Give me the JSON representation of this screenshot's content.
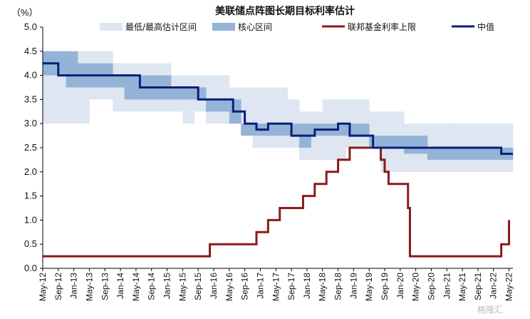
{
  "chart_data": {
    "type": "area",
    "title": "美联储点阵图长期目标利率估计",
    "unit_label": "（%）",
    "ylim": [
      0,
      5
    ],
    "yticks": [
      "0.0",
      "0.5",
      "1.0",
      "1.5",
      "2.0",
      "2.5",
      "3.0",
      "3.5",
      "4.0",
      "4.5",
      "5.0"
    ],
    "xlim": [
      "2012-05",
      "2022-06"
    ],
    "xticks": [
      {
        "date": "2012-05",
        "label": "May-12"
      },
      {
        "date": "2012-09",
        "label": "Sep-12"
      },
      {
        "date": "2013-01",
        "label": "Jan-13"
      },
      {
        "date": "2013-05",
        "label": "May-13"
      },
      {
        "date": "2013-09",
        "label": "Sep-13"
      },
      {
        "date": "2014-01",
        "label": "Jan-14"
      },
      {
        "date": "2014-05",
        "label": "May-14"
      },
      {
        "date": "2014-09",
        "label": "Sep-14"
      },
      {
        "date": "2015-01",
        "label": "Jan-15"
      },
      {
        "date": "2015-05",
        "label": "May-15"
      },
      {
        "date": "2015-09",
        "label": "Sep-15"
      },
      {
        "date": "2016-01",
        "label": "Jan-16"
      },
      {
        "date": "2016-05",
        "label": "May-16"
      },
      {
        "date": "2016-09",
        "label": "Sep-16"
      },
      {
        "date": "2017-01",
        "label": "Jan-17"
      },
      {
        "date": "2017-05",
        "label": "May-17"
      },
      {
        "date": "2017-09",
        "label": "Sep-17"
      },
      {
        "date": "2018-01",
        "label": "Jan-18"
      },
      {
        "date": "2018-05",
        "label": "May-18"
      },
      {
        "date": "2018-09",
        "label": "Sep-18"
      },
      {
        "date": "2019-01",
        "label": "Jan-19"
      },
      {
        "date": "2019-05",
        "label": "May-19"
      },
      {
        "date": "2019-09",
        "label": "Sep-19"
      },
      {
        "date": "2020-01",
        "label": "Jan-20"
      },
      {
        "date": "2020-05",
        "label": "May-20"
      },
      {
        "date": "2020-09",
        "label": "Sep-20"
      },
      {
        "date": "2021-01",
        "label": "Jan-21"
      },
      {
        "date": "2021-05",
        "label": "May-21"
      },
      {
        "date": "2021-09",
        "label": "Sep-21"
      },
      {
        "date": "2022-01",
        "label": "Jan-22"
      },
      {
        "date": "2022-05",
        "label": "May-22"
      }
    ],
    "series": [
      {
        "name": "最低/最高估计区间",
        "kind": "band",
        "color": "#dde6f1",
        "data": [
          {
            "x": "2012-05",
            "low": 3.0,
            "high": 4.5
          },
          {
            "x": "2012-08",
            "low": 3.0,
            "high": 4.5
          },
          {
            "x": "2012-11",
            "low": 3.0,
            "high": 4.5
          },
          {
            "x": "2013-02",
            "low": 3.0,
            "high": 4.5
          },
          {
            "x": "2013-05",
            "low": 3.5,
            "high": 4.5
          },
          {
            "x": "2013-08",
            "low": 3.5,
            "high": 4.5
          },
          {
            "x": "2013-11",
            "low": 3.25,
            "high": 4.25
          },
          {
            "x": "2014-02",
            "low": 3.25,
            "high": 4.25
          },
          {
            "x": "2014-05",
            "low": 3.25,
            "high": 4.25
          },
          {
            "x": "2014-08",
            "low": 3.25,
            "high": 4.25
          },
          {
            "x": "2014-11",
            "low": 3.25,
            "high": 4.25
          },
          {
            "x": "2015-02",
            "low": 3.25,
            "high": 4.0
          },
          {
            "x": "2015-05",
            "low": 3.0,
            "high": 4.0
          },
          {
            "x": "2015-08",
            "low": 3.25,
            "high": 4.0
          },
          {
            "x": "2015-11",
            "low": 3.0,
            "high": 4.0
          },
          {
            "x": "2016-02",
            "low": 3.0,
            "high": 4.0
          },
          {
            "x": "2016-05",
            "low": 3.0,
            "high": 3.75
          },
          {
            "x": "2016-08",
            "low": 2.75,
            "high": 3.75
          },
          {
            "x": "2016-11",
            "low": 2.5,
            "high": 3.75
          },
          {
            "x": "2017-02",
            "low": 2.5,
            "high": 3.75
          },
          {
            "x": "2017-05",
            "low": 2.5,
            "high": 3.75
          },
          {
            "x": "2017-08",
            "low": 2.5,
            "high": 3.5
          },
          {
            "x": "2017-11",
            "low": 2.25,
            "high": 3.25
          },
          {
            "x": "2018-02",
            "low": 2.25,
            "high": 3.25
          },
          {
            "x": "2018-05",
            "low": 2.25,
            "high": 3.5
          },
          {
            "x": "2018-08",
            "low": 2.25,
            "high": 3.5
          },
          {
            "x": "2018-11",
            "low": 2.5,
            "high": 3.5
          },
          {
            "x": "2019-02",
            "low": 2.5,
            "high": 3.5
          },
          {
            "x": "2019-05",
            "low": 2.5,
            "high": 3.25
          },
          {
            "x": "2019-08",
            "low": 2.0,
            "high": 3.25
          },
          {
            "x": "2019-11",
            "low": 2.0,
            "high": 3.25
          },
          {
            "x": "2020-02",
            "low": 2.0,
            "high": 3.0
          },
          {
            "x": "2020-05",
            "low": 2.0,
            "high": 3.0
          },
          {
            "x": "2020-08",
            "low": 2.0,
            "high": 3.0
          },
          {
            "x": "2020-11",
            "low": 2.0,
            "high": 3.0
          },
          {
            "x": "2021-02",
            "low": 2.0,
            "high": 3.0
          },
          {
            "x": "2021-05",
            "low": 2.0,
            "high": 3.0
          },
          {
            "x": "2021-08",
            "low": 2.0,
            "high": 3.0
          },
          {
            "x": "2021-11",
            "low": 2.0,
            "high": 3.0
          },
          {
            "x": "2022-02",
            "low": 2.0,
            "high": 3.0
          },
          {
            "x": "2022-06",
            "low": 2.0,
            "high": 3.0
          }
        ]
      },
      {
        "name": "核心区间",
        "kind": "band",
        "color": "#95b3d7",
        "data": [
          {
            "x": "2012-05",
            "low": 4.0,
            "high": 4.5
          },
          {
            "x": "2012-08",
            "low": 4.0,
            "high": 4.5
          },
          {
            "x": "2012-11",
            "low": 3.75,
            "high": 4.5
          },
          {
            "x": "2013-02",
            "low": 3.75,
            "high": 4.25
          },
          {
            "x": "2013-05",
            "low": 3.75,
            "high": 4.25
          },
          {
            "x": "2013-08",
            "low": 3.75,
            "high": 4.25
          },
          {
            "x": "2013-11",
            "low": 3.75,
            "high": 4.0
          },
          {
            "x": "2014-02",
            "low": 3.5,
            "high": 4.0
          },
          {
            "x": "2014-05",
            "low": 3.5,
            "high": 4.0
          },
          {
            "x": "2014-08",
            "low": 3.5,
            "high": 4.0
          },
          {
            "x": "2014-11",
            "low": 3.5,
            "high": 4.0
          },
          {
            "x": "2015-02",
            "low": 3.5,
            "high": 3.75
          },
          {
            "x": "2015-05",
            "low": 3.5,
            "high": 3.75
          },
          {
            "x": "2015-08",
            "low": 3.5,
            "high": 3.75
          },
          {
            "x": "2015-11",
            "low": 3.25,
            "high": 3.5
          },
          {
            "x": "2016-02",
            "low": 3.25,
            "high": 3.5
          },
          {
            "x": "2016-05",
            "low": 3.0,
            "high": 3.5
          },
          {
            "x": "2016-08",
            "low": 2.75,
            "high": 3.0
          },
          {
            "x": "2016-11",
            "low": 2.75,
            "high": 3.0
          },
          {
            "x": "2017-02",
            "low": 2.75,
            "high": 3.0
          },
          {
            "x": "2017-05",
            "low": 2.75,
            "high": 3.0
          },
          {
            "x": "2017-08",
            "low": 2.75,
            "high": 3.0
          },
          {
            "x": "2017-11",
            "low": 2.5,
            "high": 3.0
          },
          {
            "x": "2018-02",
            "low": 2.75,
            "high": 3.0
          },
          {
            "x": "2018-05",
            "low": 2.75,
            "high": 3.0
          },
          {
            "x": "2018-08",
            "low": 2.75,
            "high": 3.0
          },
          {
            "x": "2018-11",
            "low": 2.75,
            "high": 3.0
          },
          {
            "x": "2019-02",
            "low": 2.75,
            "high": 3.0
          },
          {
            "x": "2019-05",
            "low": 2.5,
            "high": 2.75
          },
          {
            "x": "2019-08",
            "low": 2.5,
            "high": 2.75
          },
          {
            "x": "2019-11",
            "low": 2.5,
            "high": 2.75
          },
          {
            "x": "2020-02",
            "low": 2.375,
            "high": 2.75
          },
          {
            "x": "2020-05",
            "low": 2.375,
            "high": 2.75
          },
          {
            "x": "2020-08",
            "low": 2.25,
            "high": 2.5
          },
          {
            "x": "2020-11",
            "low": 2.25,
            "high": 2.5
          },
          {
            "x": "2021-02",
            "low": 2.25,
            "high": 2.5
          },
          {
            "x": "2021-05",
            "low": 2.25,
            "high": 2.5
          },
          {
            "x": "2021-08",
            "low": 2.25,
            "high": 2.5
          },
          {
            "x": "2021-11",
            "low": 2.25,
            "high": 2.5
          },
          {
            "x": "2022-02",
            "low": 2.25,
            "high": 2.5
          },
          {
            "x": "2022-06",
            "low": 2.25,
            "high": 2.5
          }
        ]
      },
      {
        "name": "联邦基金利率上限",
        "kind": "step",
        "color": "#8b1a1a",
        "data": [
          {
            "x": "2012-05",
            "y": 0.25
          },
          {
            "x": "2015-12",
            "y": 0.5
          },
          {
            "x": "2016-12",
            "y": 0.75
          },
          {
            "x": "2017-03",
            "y": 1.0
          },
          {
            "x": "2017-06",
            "y": 1.25
          },
          {
            "x": "2017-12",
            "y": 1.5
          },
          {
            "x": "2018-03",
            "y": 1.75
          },
          {
            "x": "2018-06",
            "y": 2.0
          },
          {
            "x": "2018-09",
            "y": 2.25
          },
          {
            "x": "2018-12",
            "y": 2.5
          },
          {
            "x": "2019-08",
            "y": 2.25
          },
          {
            "x": "2019-09",
            "y": 2.0
          },
          {
            "x": "2019-10",
            "y": 1.75
          },
          {
            "x": "2020-03",
            "y": 1.25
          },
          {
            "x": "2020-03.5",
            "y": 0.25
          },
          {
            "x": "2022-03",
            "y": 0.5
          },
          {
            "x": "2022-05",
            "y": 1.0
          }
        ]
      },
      {
        "name": "中值",
        "kind": "step",
        "color": "#0a1f7a",
        "data": [
          {
            "x": "2012-05",
            "y": 4.25
          },
          {
            "x": "2012-06",
            "y": 4.25
          },
          {
            "x": "2012-09",
            "y": 4.0
          },
          {
            "x": "2014-06",
            "y": 3.75
          },
          {
            "x": "2015-09",
            "y": 3.5
          },
          {
            "x": "2016-06",
            "y": 3.25
          },
          {
            "x": "2016-09",
            "y": 3.0
          },
          {
            "x": "2016-12",
            "y": 2.875
          },
          {
            "x": "2017-03",
            "y": 3.0
          },
          {
            "x": "2017-09",
            "y": 2.75
          },
          {
            "x": "2018-03",
            "y": 2.875
          },
          {
            "x": "2018-09",
            "y": 3.0
          },
          {
            "x": "2018-12",
            "y": 2.75
          },
          {
            "x": "2019-06",
            "y": 2.5
          },
          {
            "x": "2022-03",
            "y": 2.375
          },
          {
            "x": "2022-06",
            "y": 2.375
          }
        ]
      }
    ],
    "legend": {
      "position": "top",
      "items": [
        "最低/最高估计区间",
        "核心区间",
        "联邦基金利率上限",
        "中值"
      ]
    }
  },
  "watermark": "格隆汇"
}
